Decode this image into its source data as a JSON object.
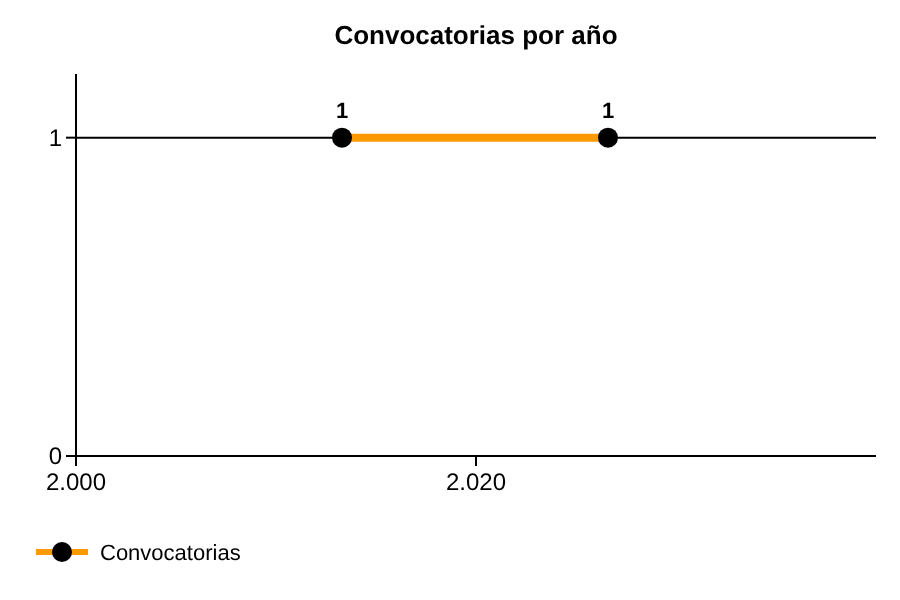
{
  "chart_data": {
    "type": "line",
    "title": "Convocatorias por año",
    "x": [
      2013.3,
      2026.6
    ],
    "series": [
      {
        "name": "Convocatorias",
        "color": "#ff9900",
        "values": [
          1,
          1
        ]
      }
    ],
    "xlim": [
      2000,
      2040
    ],
    "xticks": [
      {
        "value": 2000,
        "label": "2.000"
      },
      {
        "value": 2020,
        "label": "2.020"
      }
    ],
    "ylim": [
      0,
      1.2
    ],
    "yticks": [
      0,
      1
    ],
    "grid": "y",
    "data_labels": true,
    "marker": "circle",
    "line_style": "solid",
    "legend": "bottom left"
  }
}
